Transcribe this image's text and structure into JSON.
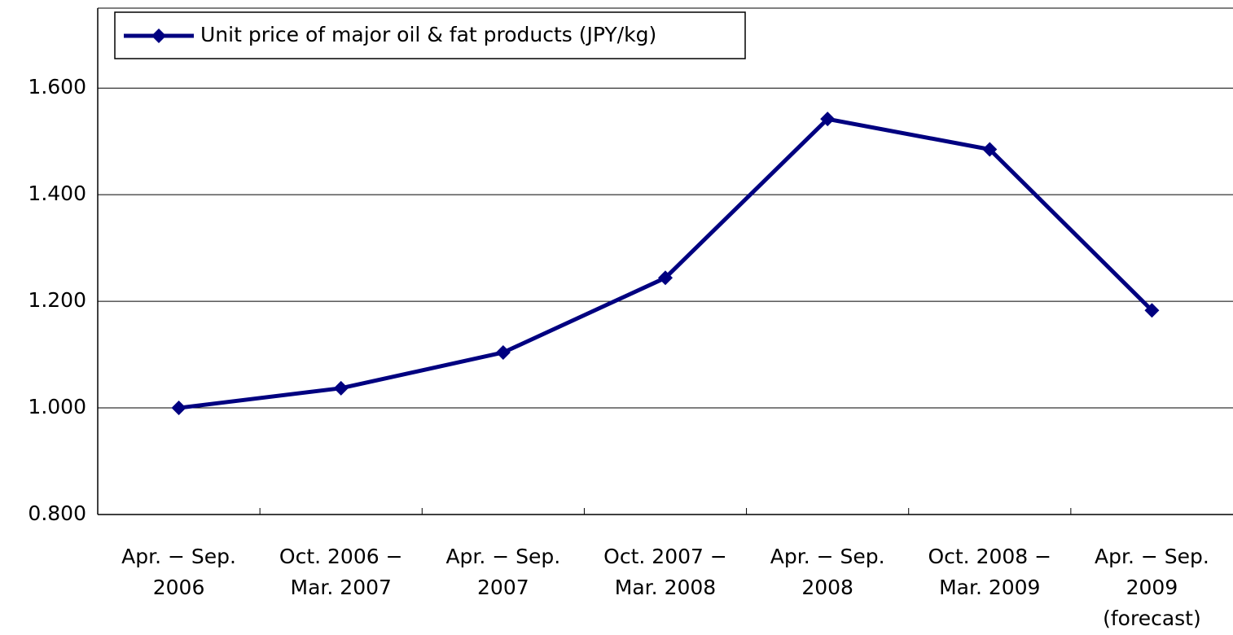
{
  "chart_data": {
    "type": "line",
    "categories": [
      [
        "Apr. − Sep.",
        "2006"
      ],
      [
        "Oct. 2006 −",
        "Mar. 2007"
      ],
      [
        "Apr. − Sep.",
        "2007"
      ],
      [
        "Oct. 2007 −",
        "Mar. 2008"
      ],
      [
        "Apr. − Sep.",
        "2008"
      ],
      [
        "Oct. 2008 −",
        "Mar. 2009"
      ],
      [
        "Apr. − Sep.",
        "2009",
        "(forecast)"
      ]
    ],
    "series": [
      {
        "name": "Unit price of major oil & fat products (JPY/kg)",
        "color": "#000080",
        "values": [
          1.0,
          1.037,
          1.104,
          1.244,
          1.542,
          1.485,
          1.183
        ]
      }
    ],
    "ylim": [
      0.8,
      1.75
    ],
    "yticks": [
      {
        "value": 0.8,
        "label": "0.800"
      },
      {
        "value": 1.0,
        "label": "1.000"
      },
      {
        "value": 1.2,
        "label": "1.200"
      },
      {
        "value": 1.4,
        "label": "1.400"
      },
      {
        "value": 1.6,
        "label": "1.600"
      }
    ],
    "grid": true,
    "legend": "top-left"
  }
}
